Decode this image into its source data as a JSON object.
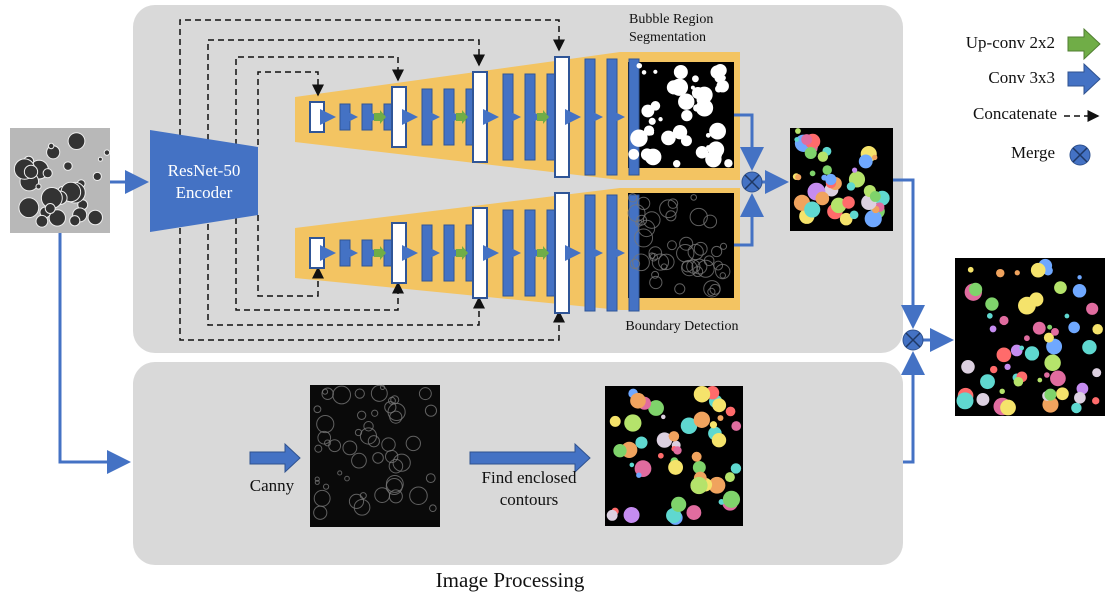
{
  "encoder": [
    "ResNet-50",
    "Encoder"
  ],
  "segmentation_head": [
    "Bubble Region",
    "Segmentation"
  ],
  "boundary_head": "Boundary Detection",
  "image_processing": {
    "title": "Image Processing",
    "canny": "Canny",
    "contours": [
      "Find enclosed",
      "contours"
    ]
  },
  "legend": [
    "Up-conv 2x2",
    "Conv 3x3",
    "Concatenate",
    "Merge"
  ]
}
